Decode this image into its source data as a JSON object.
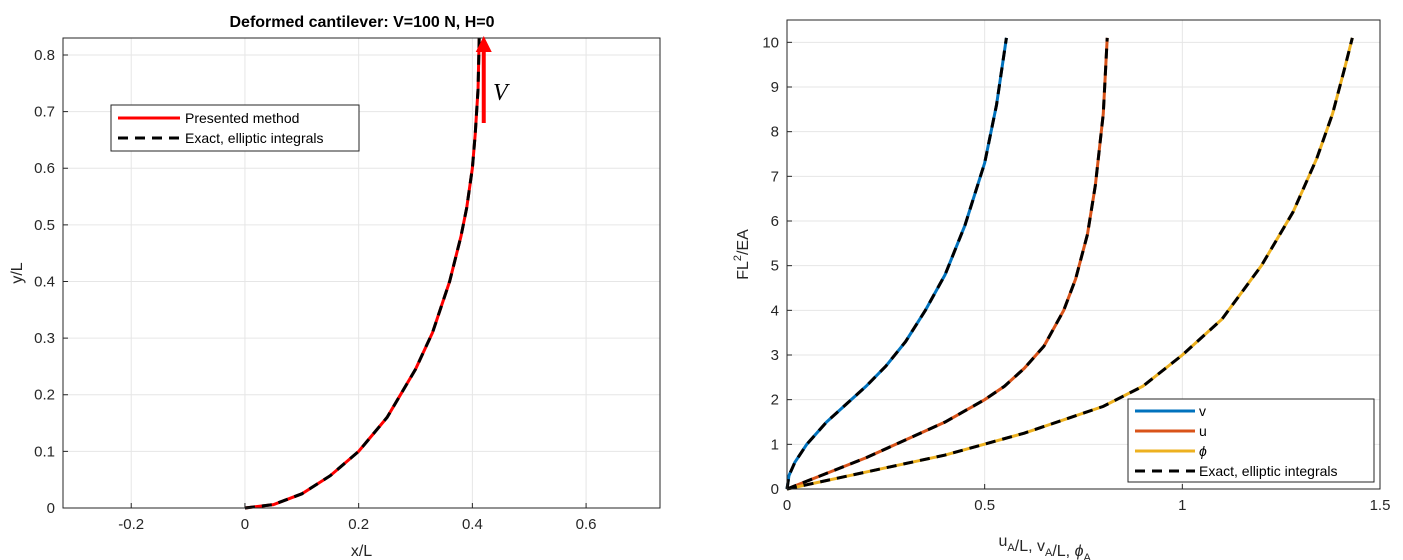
{
  "chart_data": [
    {
      "type": "line",
      "title": "Deformed cantilever: V=100 N, H=0",
      "xlabel": "x/L",
      "ylabel": "y/L",
      "xlim": [
        -0.32,
        0.73
      ],
      "ylim": [
        0,
        0.83
      ],
      "xticks": [
        -0.2,
        0,
        0.2,
        0.4,
        0.6
      ],
      "xtick_labels": [
        "-0.2",
        "0",
        "0.2",
        "0.4",
        "0.6"
      ],
      "yticks": [
        0,
        0.1,
        0.2,
        0.3,
        0.4,
        0.5,
        0.6,
        0.7,
        0.8
      ],
      "ytick_labels": [
        "0",
        "0.1",
        "0.2",
        "0.3",
        "0.4",
        "0.5",
        "0.6",
        "0.7",
        "0.8"
      ],
      "grid": true,
      "legend_position": "upper-left",
      "annotation": "V",
      "load_arrow": {
        "x": 0.42,
        "y_from": 0.68,
        "y_to": 0.83,
        "color": "#ff0000"
      },
      "series": [
        {
          "name": "Presented method",
          "color": "#ff0000",
          "style": "solid",
          "x": [
            0,
            0.05,
            0.1,
            0.15,
            0.2,
            0.25,
            0.3,
            0.33,
            0.36,
            0.38,
            0.39,
            0.4,
            0.405,
            0.41,
            0.412
          ],
          "y": [
            0,
            0.006,
            0.025,
            0.057,
            0.1,
            0.16,
            0.245,
            0.31,
            0.4,
            0.48,
            0.53,
            0.6,
            0.66,
            0.74,
            0.83
          ]
        },
        {
          "name": "Exact, elliptic integrals",
          "color": "#000000",
          "style": "dashed",
          "x": [
            0,
            0.05,
            0.1,
            0.15,
            0.2,
            0.25,
            0.3,
            0.33,
            0.36,
            0.38,
            0.39,
            0.4,
            0.405,
            0.41,
            0.412
          ],
          "y": [
            0,
            0.006,
            0.025,
            0.057,
            0.1,
            0.16,
            0.245,
            0.31,
            0.4,
            0.48,
            0.53,
            0.6,
            0.66,
            0.74,
            0.83
          ]
        }
      ]
    },
    {
      "type": "line",
      "title": "",
      "xlabel_parts": [
        "u",
        "A",
        "/L,  v",
        "A",
        "/L,  ",
        "ϕ",
        "A"
      ],
      "ylabel_parts": [
        "FL",
        "2",
        "/EA"
      ],
      "xlim": [
        0,
        1.5
      ],
      "ylim": [
        0,
        10.5
      ],
      "xticks": [
        0,
        0.5,
        1,
        1.5
      ],
      "xtick_labels": [
        "0",
        "0.5",
        "1",
        "1.5"
      ],
      "yticks": [
        0,
        1,
        2,
        3,
        4,
        5,
        6,
        7,
        8,
        9,
        10
      ],
      "ytick_labels": [
        "0",
        "1",
        "2",
        "3",
        "4",
        "5",
        "6",
        "7",
        "8",
        "9",
        "10"
      ],
      "grid": true,
      "legend_position": "lower-right",
      "series": [
        {
          "name": "v",
          "color": "#0072bd",
          "style": "solid",
          "x": [
            0,
            0.005,
            0.02,
            0.05,
            0.1,
            0.15,
            0.2,
            0.25,
            0.3,
            0.35,
            0.4,
            0.45,
            0.5,
            0.53,
            0.555
          ],
          "y": [
            0,
            0.3,
            0.6,
            1.0,
            1.5,
            1.9,
            2.3,
            2.75,
            3.3,
            4.0,
            4.8,
            5.9,
            7.3,
            8.6,
            10.1
          ]
        },
        {
          "name": "u",
          "color": "#d95319",
          "style": "solid",
          "x": [
            0,
            0.1,
            0.2,
            0.3,
            0.4,
            0.5,
            0.55,
            0.6,
            0.65,
            0.7,
            0.73,
            0.76,
            0.78,
            0.8,
            0.81
          ],
          "y": [
            0,
            0.35,
            0.7,
            1.1,
            1.5,
            2.0,
            2.3,
            2.7,
            3.2,
            4.0,
            4.7,
            5.7,
            6.8,
            8.4,
            10.1
          ]
        },
        {
          "name": "ϕ",
          "color": "#edb120",
          "style": "solid",
          "x": [
            0,
            0.2,
            0.4,
            0.6,
            0.8,
            0.9,
            1.0,
            1.1,
            1.2,
            1.28,
            1.34,
            1.38,
            1.41,
            1.43
          ],
          "y": [
            0,
            0.38,
            0.76,
            1.25,
            1.85,
            2.3,
            3.0,
            3.8,
            5.0,
            6.2,
            7.4,
            8.4,
            9.4,
            10.1
          ]
        },
        {
          "name": "Exact, elliptic integrals",
          "color": "#000000",
          "style": "dashed",
          "curves": [
            "v",
            "u",
            "ϕ"
          ]
        }
      ]
    }
  ]
}
